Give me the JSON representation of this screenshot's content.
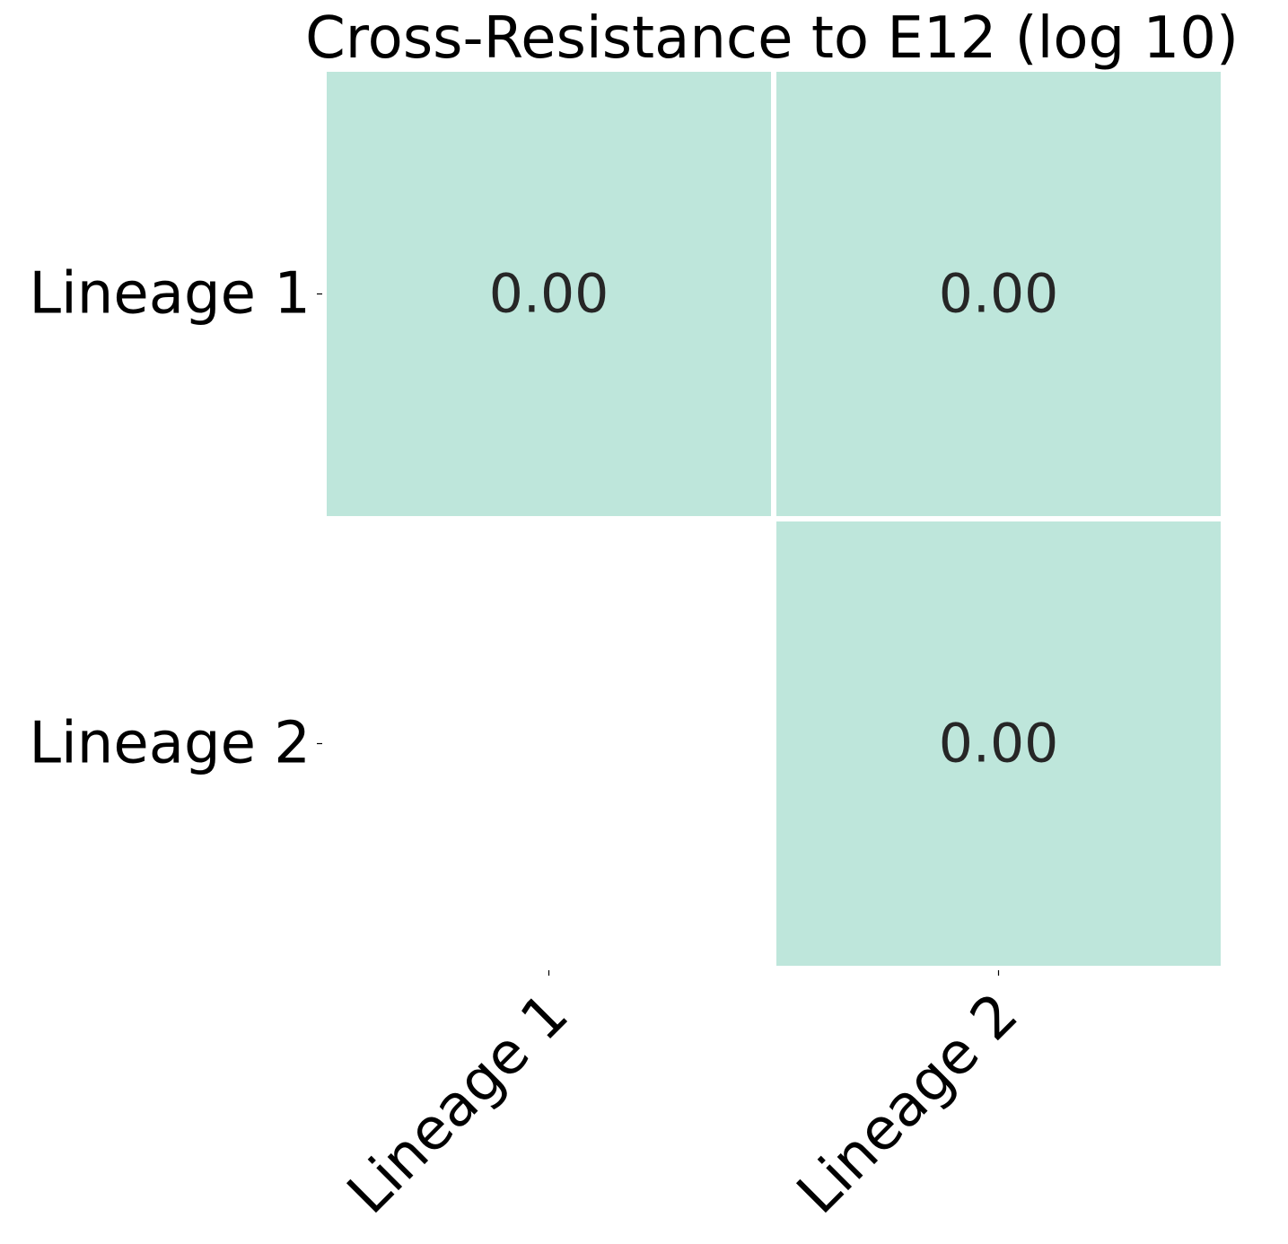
{
  "chart_data": {
    "type": "heatmap",
    "title": "Cross-Resistance to E12 (log 10)",
    "xlabel": "",
    "ylabel": "",
    "x_categories": [
      "Lineage 1",
      "Lineage 2"
    ],
    "y_categories": [
      "Lineage 1",
      "Lineage 2"
    ],
    "cells": [
      {
        "row": 0,
        "col": 0,
        "value": 0.0,
        "label": "0.00"
      },
      {
        "row": 0,
        "col": 1,
        "value": 0.0,
        "label": "0.00"
      },
      {
        "row": 1,
        "col": 1,
        "value": 0.0,
        "label": "0.00"
      }
    ],
    "masked_cells": [
      {
        "row": 1,
        "col": 0
      }
    ],
    "cell_color": "#bee6db",
    "grid_line_color": "#ffffff",
    "x_tick_rotation_deg": 45
  }
}
